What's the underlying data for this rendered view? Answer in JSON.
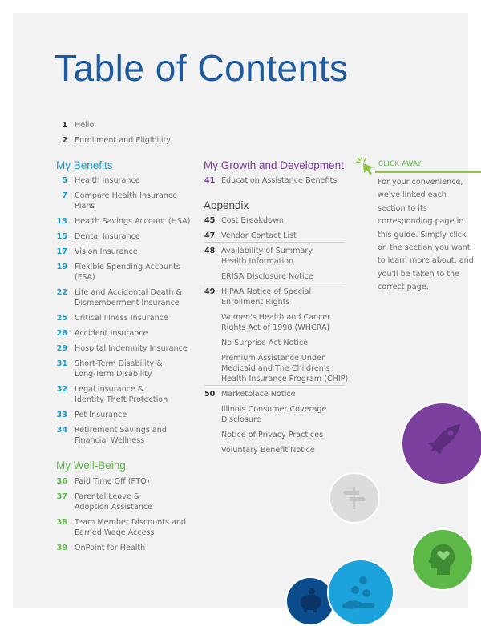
{
  "title": "Table of Contents",
  "colors": {
    "title": "#1e5aa0",
    "benefits": "#1a9bc9",
    "growth": "#7b3f9e",
    "wellbeing": "#5cb847",
    "click_away": "#8cc63f"
  },
  "intro": [
    {
      "num": "1",
      "lines": [
        "Hello"
      ]
    },
    {
      "num": "2",
      "lines": [
        "Enrollment and Eligibility"
      ]
    }
  ],
  "benefits": {
    "heading": "My Benefits",
    "items": [
      {
        "num": "5",
        "lines": [
          "Health Insurance"
        ]
      },
      {
        "num": "7",
        "lines": [
          "Compare Health Insurance",
          "Plans"
        ]
      },
      {
        "num": "13",
        "lines": [
          "Health Savings Account (HSA)"
        ]
      },
      {
        "num": "15",
        "lines": [
          "Dental Insurance"
        ]
      },
      {
        "num": "17",
        "lines": [
          "Vision Insurance"
        ]
      },
      {
        "num": "19",
        "lines": [
          "Flexible Spending Accounts",
          "(FSA)"
        ]
      },
      {
        "num": "22",
        "lines": [
          "Life and Accidental Death &",
          "Dismemberment Insurance"
        ]
      },
      {
        "num": "25",
        "lines": [
          "Critical Illness Insurance"
        ]
      },
      {
        "num": "28",
        "lines": [
          "Accident Insurance"
        ]
      },
      {
        "num": "29",
        "lines": [
          "Hospital Indemnity Insurance"
        ]
      },
      {
        "num": "31",
        "lines": [
          "Short-Term Disability &",
          "Long-Term Disability"
        ]
      },
      {
        "num": "32",
        "lines": [
          "Legal Insurance &",
          "Identity Theft Protection"
        ]
      },
      {
        "num": "33",
        "lines": [
          "Pet Insurance"
        ]
      },
      {
        "num": "34",
        "lines": [
          "Retirement Savings and",
          "Financial Wellness"
        ]
      }
    ]
  },
  "wellbeing": {
    "heading": "My Well-Being",
    "items": [
      {
        "num": "36",
        "lines": [
          "Paid Time Off (PTO)"
        ]
      },
      {
        "num": "37",
        "lines": [
          "Parental Leave &",
          "Adoption Assistance"
        ]
      },
      {
        "num": "38",
        "lines": [
          "Team Member Discounts and",
          "Earned Wage Access"
        ]
      },
      {
        "num": "39",
        "lines": [
          "OnPoint for Health"
        ]
      }
    ]
  },
  "growth": {
    "heading": "My Growth and Development",
    "items": [
      {
        "num": "41",
        "lines": [
          "Education Assistance Benefits"
        ]
      }
    ]
  },
  "appendix": {
    "heading": "Appendix",
    "items": [
      {
        "num": "45",
        "lines": [
          "Cost Breakdown"
        ]
      },
      {
        "num": "47",
        "lines": [
          "Vendor Contact List"
        ],
        "rule": true
      },
      {
        "num": "48",
        "lines": [
          "Availability of Summary",
          "Health Information"
        ]
      },
      {
        "num": "",
        "lines": [
          "ERISA Disclosure Notice"
        ],
        "rule": true
      },
      {
        "num": "49",
        "lines": [
          "HIPAA Notice of Special",
          "Enrollment Rights"
        ]
      },
      {
        "num": "",
        "lines": [
          "Women's Health and Cancer",
          "Rights Act of 1998 (WHCRA)"
        ]
      },
      {
        "num": "",
        "lines": [
          "No Surprise Act Notice"
        ]
      },
      {
        "num": "",
        "lines": [
          "Premium Assistance Under",
          "Medicaid and The Children's",
          "Health Insurance Program (CHIP)"
        ],
        "rule": true
      },
      {
        "num": "50",
        "lines": [
          "Marketplace Notice"
        ]
      },
      {
        "num": "",
        "lines": [
          "Illinois Consumer Coverage",
          "Disclosure"
        ]
      },
      {
        "num": "",
        "lines": [
          "Notice of Privacy Practices"
        ]
      },
      {
        "num": "",
        "lines": [
          "Voluntary Benefit Notice"
        ]
      }
    ]
  },
  "click_away": {
    "label": "CLICK AWAY",
    "text": "For your convenience, we've linked each section to its corresponding page in this guide. Simply click on the section you want to learn more about, and you'll be taken to the correct page.",
    "icon": "cursor-click-icon"
  },
  "decorations": [
    {
      "icon": "rocket-icon",
      "color": "#7b3f9e"
    },
    {
      "icon": "signpost-icon",
      "color": "#dcdcdc"
    },
    {
      "icon": "head-heart-icon",
      "color": "#5cb847"
    },
    {
      "icon": "piggy-bank-icon",
      "color": "#0b4c8c"
    },
    {
      "icon": "hand-coins-icon",
      "color": "#1ca3dc"
    }
  ]
}
